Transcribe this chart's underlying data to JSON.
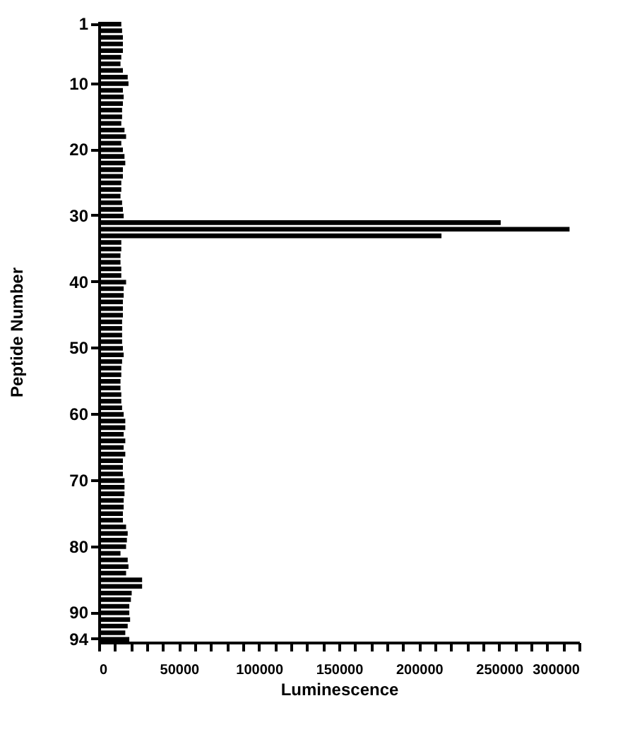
{
  "chart_data": {
    "type": "bar",
    "orientation": "horizontal",
    "xlabel": "Luminescence",
    "ylabel": "Peptide Number",
    "categories": [
      "1",
      null,
      null,
      null,
      null,
      null,
      null,
      null,
      null,
      "10",
      null,
      null,
      null,
      null,
      null,
      null,
      null,
      null,
      null,
      "20",
      null,
      null,
      null,
      null,
      null,
      null,
      null,
      null,
      null,
      "30",
      null,
      null,
      null,
      null,
      null,
      null,
      null,
      null,
      null,
      "40",
      null,
      null,
      null,
      null,
      null,
      null,
      null,
      null,
      null,
      "50",
      null,
      null,
      null,
      null,
      null,
      null,
      null,
      null,
      null,
      "60",
      null,
      null,
      null,
      null,
      null,
      null,
      null,
      null,
      null,
      "70",
      null,
      null,
      null,
      null,
      null,
      null,
      null,
      null,
      null,
      "80",
      null,
      null,
      null,
      null,
      null,
      null,
      null,
      null,
      null,
      "90",
      null,
      null,
      null,
      "94"
    ],
    "values": [
      14000,
      14500,
      15000,
      15000,
      15000,
      14000,
      13500,
      15000,
      18000,
      18500,
      15000,
      15500,
      15000,
      14500,
      14500,
      14000,
      16000,
      17000,
      14000,
      15000,
      16000,
      16500,
      15000,
      15000,
      14000,
      14000,
      13500,
      14500,
      15000,
      15500,
      251000,
      294000,
      214000,
      14000,
      14000,
      13500,
      13500,
      14000,
      14000,
      17000,
      15500,
      15500,
      15000,
      15000,
      15000,
      14500,
      14500,
      14500,
      14500,
      15000,
      15500,
      14500,
      14000,
      14000,
      13500,
      13500,
      14000,
      14000,
      14500,
      15500,
      16500,
      16500,
      15500,
      16500,
      15500,
      16500,
      15000,
      15000,
      15000,
      16000,
      16000,
      16000,
      15500,
      15500,
      15000,
      15000,
      17000,
      18000,
      17500,
      17000,
      13500,
      18000,
      18500,
      17000,
      27000,
      27000,
      20500,
      20000,
      19000,
      19000,
      19500,
      18000,
      16500,
      19000
    ],
    "color": "#000000",
    "xlim": [
      0,
      300000
    ],
    "xticks": [
      0,
      {
        "value": 10000,
        "label": null
      },
      {
        "value": 20000,
        "label": null
      },
      {
        "value": 30000,
        "label": null
      },
      {
        "value": 40000,
        "label": null
      },
      50000,
      {
        "value": 60000,
        "label": null
      },
      {
        "value": 70000,
        "label": null
      },
      {
        "value": 80000,
        "label": null
      },
      {
        "value": 90000,
        "label": null
      },
      100000,
      {
        "value": 110000,
        "label": null
      },
      {
        "value": 120000,
        "label": null
      },
      {
        "value": 130000,
        "label": null
      },
      {
        "value": 140000,
        "label": null
      },
      150000,
      {
        "value": 160000,
        "label": null
      },
      {
        "value": 170000,
        "label": null
      },
      {
        "value": 180000,
        "label": null
      },
      {
        "value": 190000,
        "label": null
      },
      200000,
      {
        "value": 210000,
        "label": null
      },
      {
        "value": 220000,
        "label": null
      },
      {
        "value": 230000,
        "label": null
      },
      {
        "value": 240000,
        "label": null
      },
      250000,
      {
        "value": 260000,
        "label": null
      },
      {
        "value": 270000,
        "label": null
      },
      {
        "value": 280000,
        "label": null
      },
      {
        "value": 290000,
        "label": null
      },
      300000
    ],
    "grid": false
  }
}
